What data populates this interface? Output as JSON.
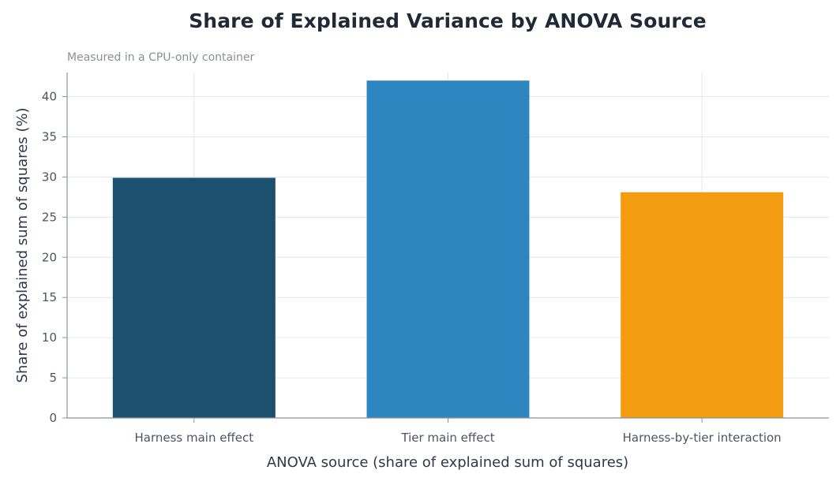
{
  "chart_data": {
    "type": "bar",
    "title": "Share of Explained Variance by ANOVA Source",
    "subtitle": "Measured in a CPU-only container",
    "xlabel": "ANOVA source (share of explained sum of squares)",
    "ylabel": "Share of explained sum of squares (%)",
    "categories": [
      "Harness main effect",
      "Tier main effect",
      "Harness-by-tier interaction"
    ],
    "values": [
      29.9,
      42.0,
      28.1
    ],
    "colors": [
      "#1d4f6e",
      "#2e86c1",
      "#f39c12"
    ],
    "ylim": [
      0,
      43
    ],
    "yticks": [
      0,
      5,
      10,
      15,
      20,
      25,
      30,
      35,
      40
    ],
    "grid": true,
    "legend": "none"
  }
}
